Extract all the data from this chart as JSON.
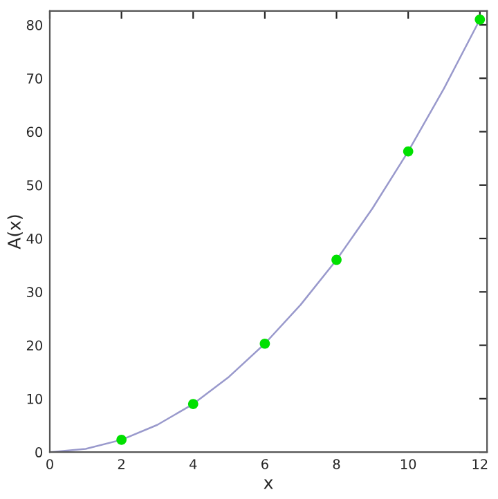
{
  "chart_data": {
    "type": "line",
    "xlabel": "x",
    "ylabel": "A(x)",
    "xlim": [
      0,
      12.2
    ],
    "ylim": [
      0,
      82.6
    ],
    "xticks": [
      0,
      2,
      4,
      6,
      8,
      10,
      12
    ],
    "yticks": [
      0,
      10,
      20,
      30,
      40,
      50,
      60,
      70,
      80
    ],
    "grid": false,
    "series": [
      {
        "color": "#9999cc",
        "marker": "none",
        "x": [
          0,
          1,
          2,
          3,
          4,
          5,
          6,
          7,
          8,
          9,
          10,
          11,
          12
        ],
        "values": [
          0,
          0.6,
          2.3,
          5.1,
          9,
          14.1,
          20.3,
          27.6,
          36,
          45.6,
          56.3,
          68.1,
          81
        ]
      },
      {
        "type": "scatter",
        "color": "#00e000",
        "marker": "circle",
        "x": [
          2,
          4,
          6,
          8,
          10,
          12
        ],
        "values": [
          2.3,
          9,
          20.3,
          36,
          56.3,
          81
        ]
      }
    ]
  }
}
